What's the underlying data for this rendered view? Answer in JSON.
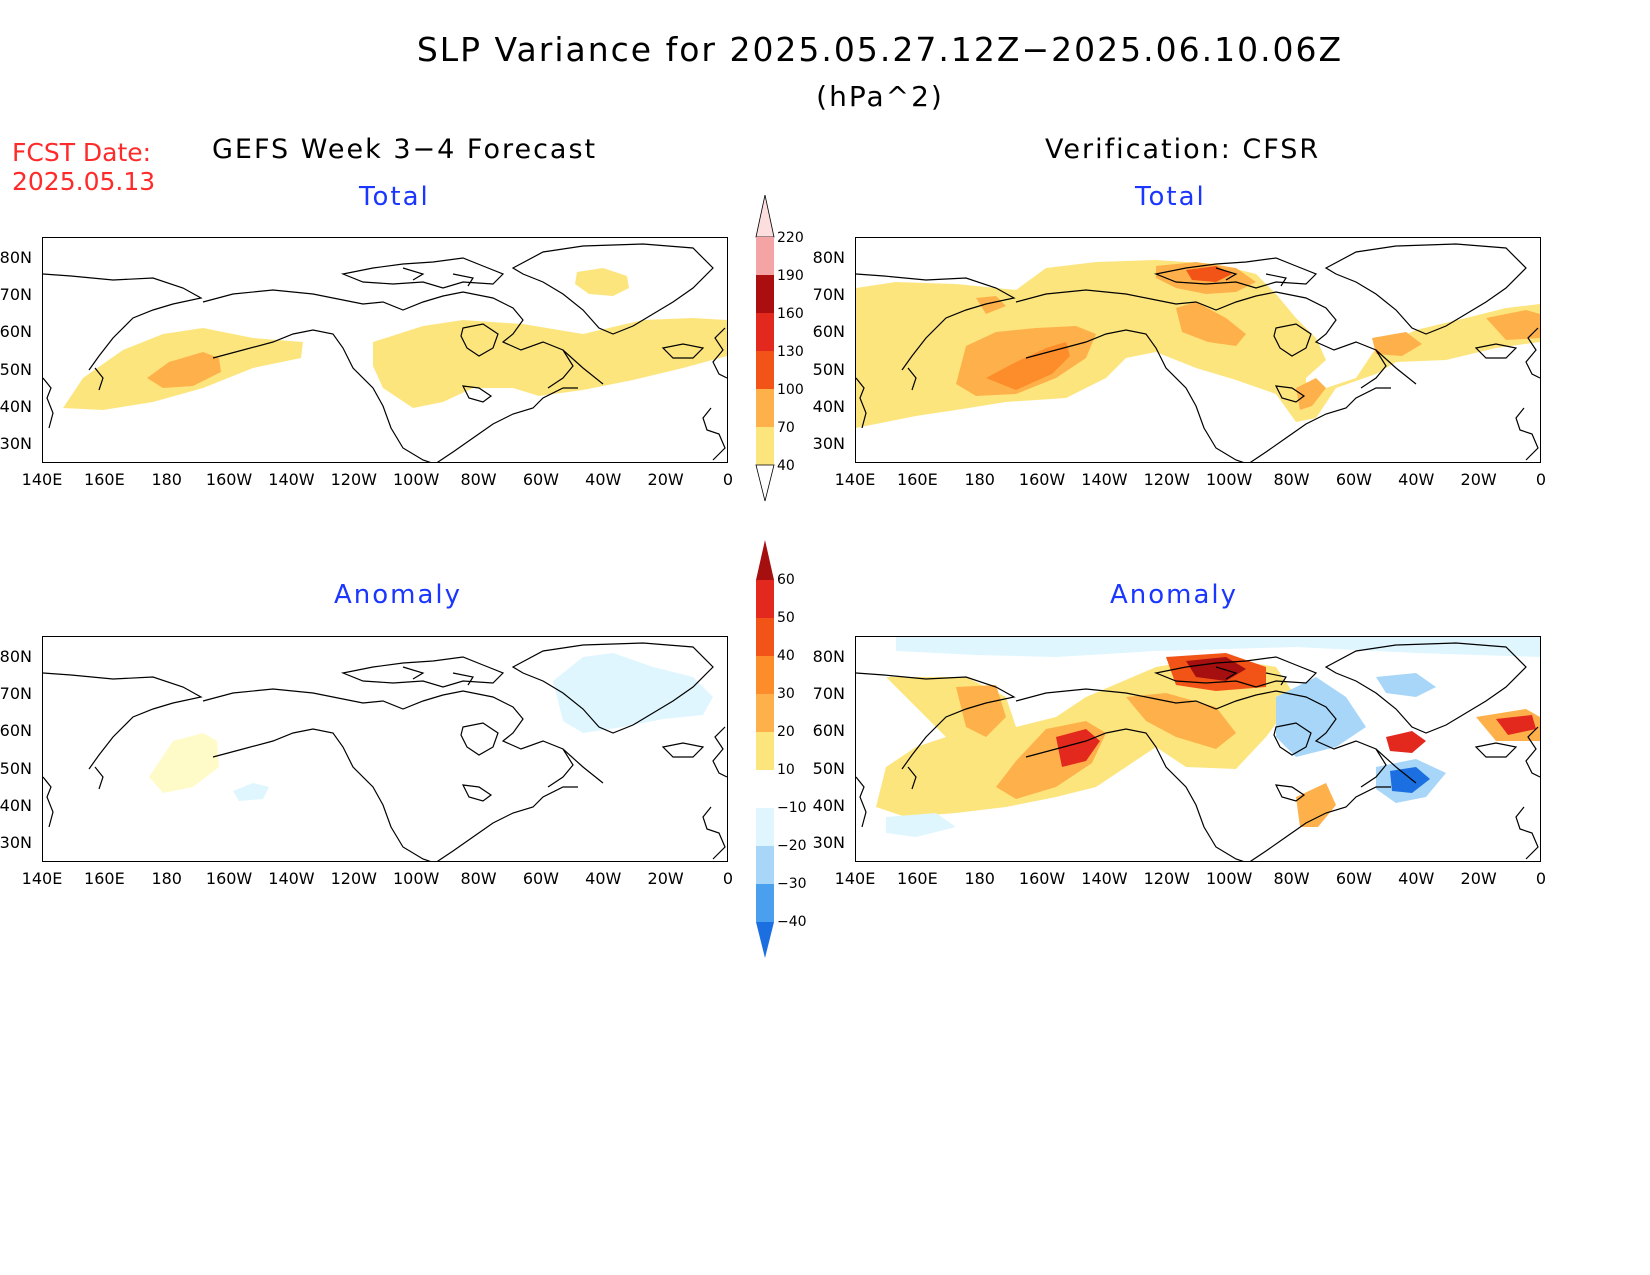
{
  "title": "SLP Variance for 2025.05.27.12Z−2025.06.10.06Z",
  "units": "(hPa^2)",
  "fcst_label_line1": "FCST Date:",
  "fcst_label_line2": "2025.05.13",
  "left_column_title": "GEFS Week 3−4 Forecast",
  "right_column_title": "Verification: CFSR",
  "panel_titles": {
    "top": "Total",
    "bottom": "Anomaly"
  },
  "lat_labels": [
    "80N",
    "70N",
    "60N",
    "50N",
    "40N",
    "30N"
  ],
  "lon_labels": [
    "140E",
    "160E",
    "180",
    "160W",
    "140W",
    "120W",
    "100W",
    "80W",
    "60W",
    "40W",
    "20W",
    "0"
  ],
  "total_colorbar": {
    "levels": [
      "40",
      "70",
      "100",
      "130",
      "160",
      "190",
      "220"
    ],
    "colors": [
      "#fde57e",
      "#feb14a",
      "#fd8d2a",
      "#f25418",
      "#e3281e",
      "#ab0e0e",
      "#f4a4a4",
      "#fcdede"
    ]
  },
  "anomaly_colorbar": {
    "levels": [
      "60",
      "50",
      "40",
      "30",
      "20",
      "10",
      "−10",
      "−20",
      "−30",
      "−40"
    ],
    "colors_top_to_bottom": [
      "#a50f0f",
      "#e3281e",
      "#f25418",
      "#fd8d2a",
      "#feb14a",
      "#fde57e",
      "#fffbc8",
      "#ffffff",
      "#dff6ff",
      "#a7d6f8",
      "#4aa0ee",
      "#1b6fe0",
      "#0b4fb8"
    ]
  }
}
